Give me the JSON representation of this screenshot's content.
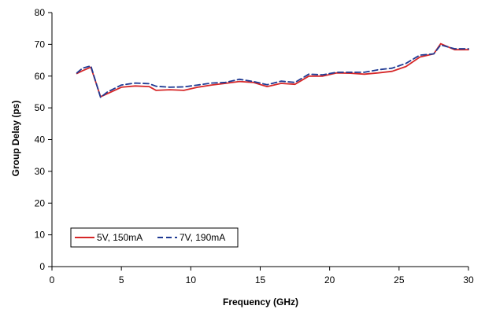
{
  "chart_data": {
    "type": "line",
    "xlabel": "Frequency (GHz)",
    "ylabel": "Group Delay (ps)",
    "xlim": [
      0,
      30
    ],
    "ylim": [
      0,
      80
    ],
    "xticks": [
      0,
      5,
      10,
      15,
      20,
      25,
      30
    ],
    "yticks": [
      0,
      10,
      20,
      30,
      40,
      50,
      60,
      70,
      80
    ],
    "xtick_labels": [
      "0",
      "5",
      "10",
      "15",
      "20",
      "25",
      "30"
    ],
    "ytick_labels": [
      "0",
      "10",
      "20",
      "30",
      "40",
      "50",
      "60",
      "70",
      "80"
    ],
    "grid": false,
    "legend": "bottom-left",
    "series": [
      {
        "name": "5V, 150mA",
        "color": "#d62728",
        "style": "solid",
        "x": [
          1.8,
          2.2,
          2.8,
          3.5,
          4.0,
          5.0,
          6.0,
          7.0,
          7.5,
          8.5,
          9.5,
          10.5,
          11.5,
          12.5,
          13.5,
          14.5,
          15.5,
          16.5,
          17.5,
          18.5,
          19.5,
          20.5,
          21.5,
          22.5,
          23.5,
          24.5,
          25.5,
          26.5,
          27.5,
          28.0,
          29.0,
          30.0
        ],
        "y": [
          60.8,
          61.7,
          62.8,
          53.5,
          54.5,
          56.5,
          56.9,
          56.7,
          55.5,
          55.7,
          55.5,
          56.5,
          57.2,
          57.7,
          58.3,
          58.0,
          56.7,
          57.7,
          57.4,
          60.0,
          60.0,
          61.0,
          60.9,
          60.6,
          61.0,
          61.5,
          63.0,
          66.0,
          67.0,
          70.2,
          68.3,
          68.3
        ]
      },
      {
        "name": "7V, 190mA",
        "color": "#1f3a93",
        "style": "dashed",
        "x": [
          1.8,
          2.2,
          2.8,
          3.5,
          4.0,
          5.0,
          6.0,
          7.0,
          7.5,
          8.5,
          9.5,
          10.5,
          11.5,
          12.5,
          13.5,
          14.5,
          15.5,
          16.5,
          17.5,
          18.5,
          19.5,
          20.5,
          21.5,
          22.5,
          23.5,
          24.5,
          25.5,
          26.5,
          27.5,
          28.0,
          29.0,
          30.0
        ],
        "y": [
          61.0,
          62.5,
          63.2,
          53.3,
          55.0,
          57.2,
          57.8,
          57.6,
          56.8,
          56.5,
          56.6,
          57.2,
          57.8,
          58.0,
          59.0,
          58.3,
          57.3,
          58.4,
          58.0,
          60.6,
          60.4,
          61.2,
          61.2,
          61.2,
          62.0,
          62.5,
          64.0,
          66.6,
          67.0,
          69.8,
          68.6,
          68.6
        ]
      }
    ]
  }
}
